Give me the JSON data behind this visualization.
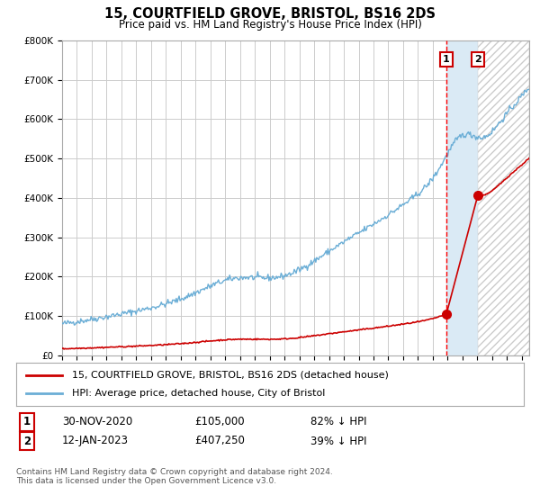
{
  "title": "15, COURTFIELD GROVE, BRISTOL, BS16 2DS",
  "subtitle": "Price paid vs. HM Land Registry's House Price Index (HPI)",
  "legend_label_red": "15, COURTFIELD GROVE, BRISTOL, BS16 2DS (detached house)",
  "legend_label_blue": "HPI: Average price, detached house, City of Bristol",
  "annotation1_date": "30-NOV-2020",
  "annotation1_price": "£105,000",
  "annotation1_hpi": "82% ↓ HPI",
  "annotation2_date": "12-JAN-2023",
  "annotation2_price": "£407,250",
  "annotation2_hpi": "39% ↓ HPI",
  "footer": "Contains HM Land Registry data © Crown copyright and database right 2024.\nThis data is licensed under the Open Government Licence v3.0.",
  "hpi_color": "#6baed6",
  "price_color": "#cc0000",
  "background_color": "#ffffff",
  "grid_color": "#cccccc",
  "shade_color": "#daeaf5",
  "dashed_color": "#ff0000",
  "sale1_t": 2020.917,
  "sale2_t": 2023.04,
  "sale1_price": 105000,
  "sale2_price": 407250,
  "ylim_max": 800000,
  "ylim_min": 0,
  "xlim_min": 1995,
  "xlim_max": 2026.5
}
